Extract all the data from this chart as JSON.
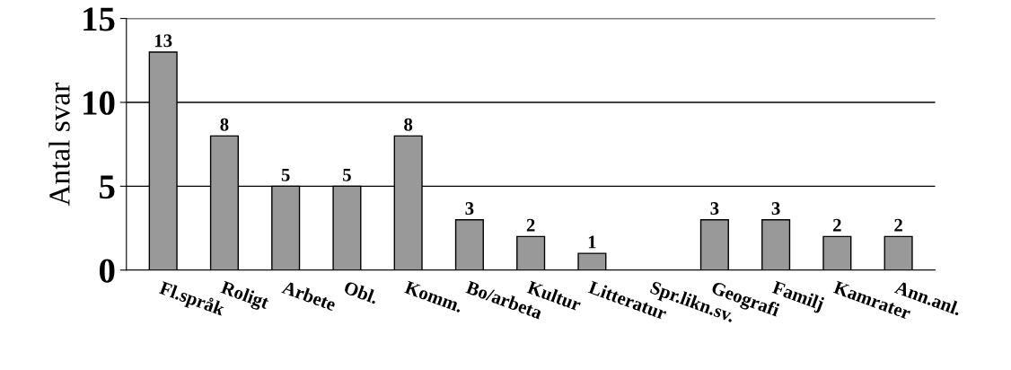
{
  "chart_data": {
    "type": "bar",
    "ylabel": "Antal svar",
    "categories": [
      "Fl.språk",
      "Roligt",
      "Arbete",
      "Obl.",
      "Komm.",
      "Bo/arbeta",
      "Kultur",
      "Litteratur",
      "Spr.likn.sv.",
      "Geografi",
      "Familj",
      "Kamrater",
      "Ann.anl."
    ],
    "values": [
      13,
      8,
      5,
      5,
      8,
      3,
      2,
      1,
      0,
      3,
      3,
      2,
      2
    ],
    "value_labels": [
      "13",
      "8",
      "5",
      "5",
      "8",
      "3",
      "2",
      "1",
      null,
      "3",
      "3",
      "2",
      "2"
    ],
    "color": "#999999",
    "ylim": [
      0,
      15
    ],
    "yticks": [
      0,
      5,
      10,
      15
    ],
    "grid": "y",
    "legend": false
  }
}
